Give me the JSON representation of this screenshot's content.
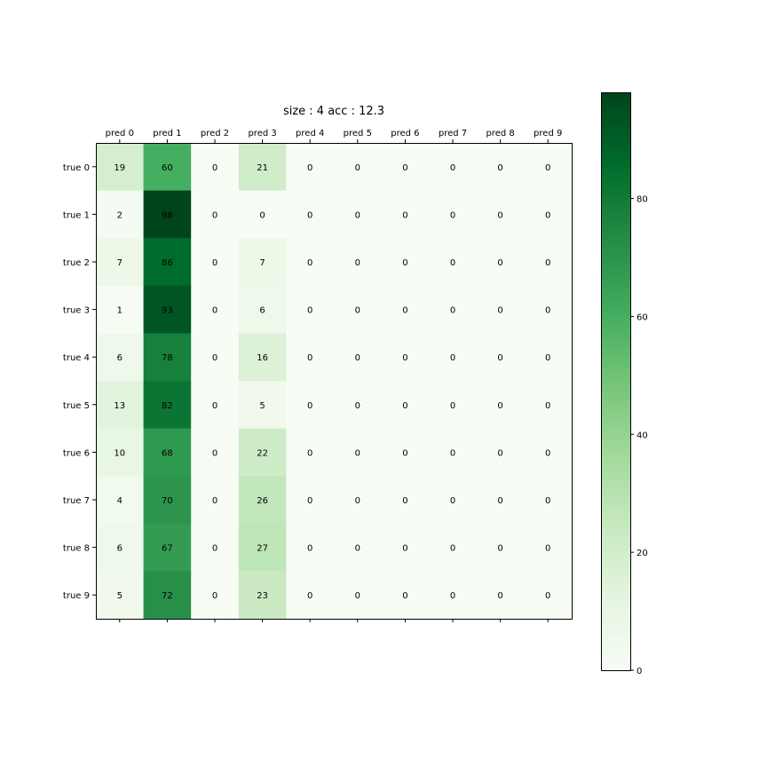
{
  "chart_data": {
    "type": "heatmap",
    "title": "size : 4 acc : 12.3",
    "x_labels": [
      "pred 0",
      "pred 1",
      "pred 2",
      "pred 3",
      "pred 4",
      "pred 5",
      "pred 6",
      "pred 7",
      "pred 8",
      "pred 9"
    ],
    "y_labels": [
      "true 0",
      "true 1",
      "true 2",
      "true 3",
      "true 4",
      "true 5",
      "true 6",
      "true 7",
      "true 8",
      "true 9"
    ],
    "x_axis_position": "top",
    "values": [
      [
        19,
        60,
        0,
        21,
        0,
        0,
        0,
        0,
        0,
        0
      ],
      [
        2,
        98,
        0,
        0,
        0,
        0,
        0,
        0,
        0,
        0
      ],
      [
        7,
        86,
        0,
        7,
        0,
        0,
        0,
        0,
        0,
        0
      ],
      [
        1,
        93,
        0,
        6,
        0,
        0,
        0,
        0,
        0,
        0
      ],
      [
        6,
        78,
        0,
        16,
        0,
        0,
        0,
        0,
        0,
        0
      ],
      [
        13,
        82,
        0,
        5,
        0,
        0,
        0,
        0,
        0,
        0
      ],
      [
        10,
        68,
        0,
        22,
        0,
        0,
        0,
        0,
        0,
        0
      ],
      [
        4,
        70,
        0,
        26,
        0,
        0,
        0,
        0,
        0,
        0
      ],
      [
        6,
        67,
        0,
        27,
        0,
        0,
        0,
        0,
        0,
        0
      ],
      [
        5,
        72,
        0,
        23,
        0,
        0,
        0,
        0,
        0,
        0
      ]
    ],
    "colormap": "Greens",
    "colormap_stops": [
      "#f7fcf5",
      "#e5f5e0",
      "#c7e9c0",
      "#a1d99b",
      "#74c476",
      "#41ab5d",
      "#238b45",
      "#006d2c",
      "#00441b"
    ],
    "colorbar": {
      "range": [
        0,
        98
      ],
      "ticks": [
        0,
        20,
        40,
        60,
        80
      ],
      "position": "right"
    },
    "grid": false
  }
}
